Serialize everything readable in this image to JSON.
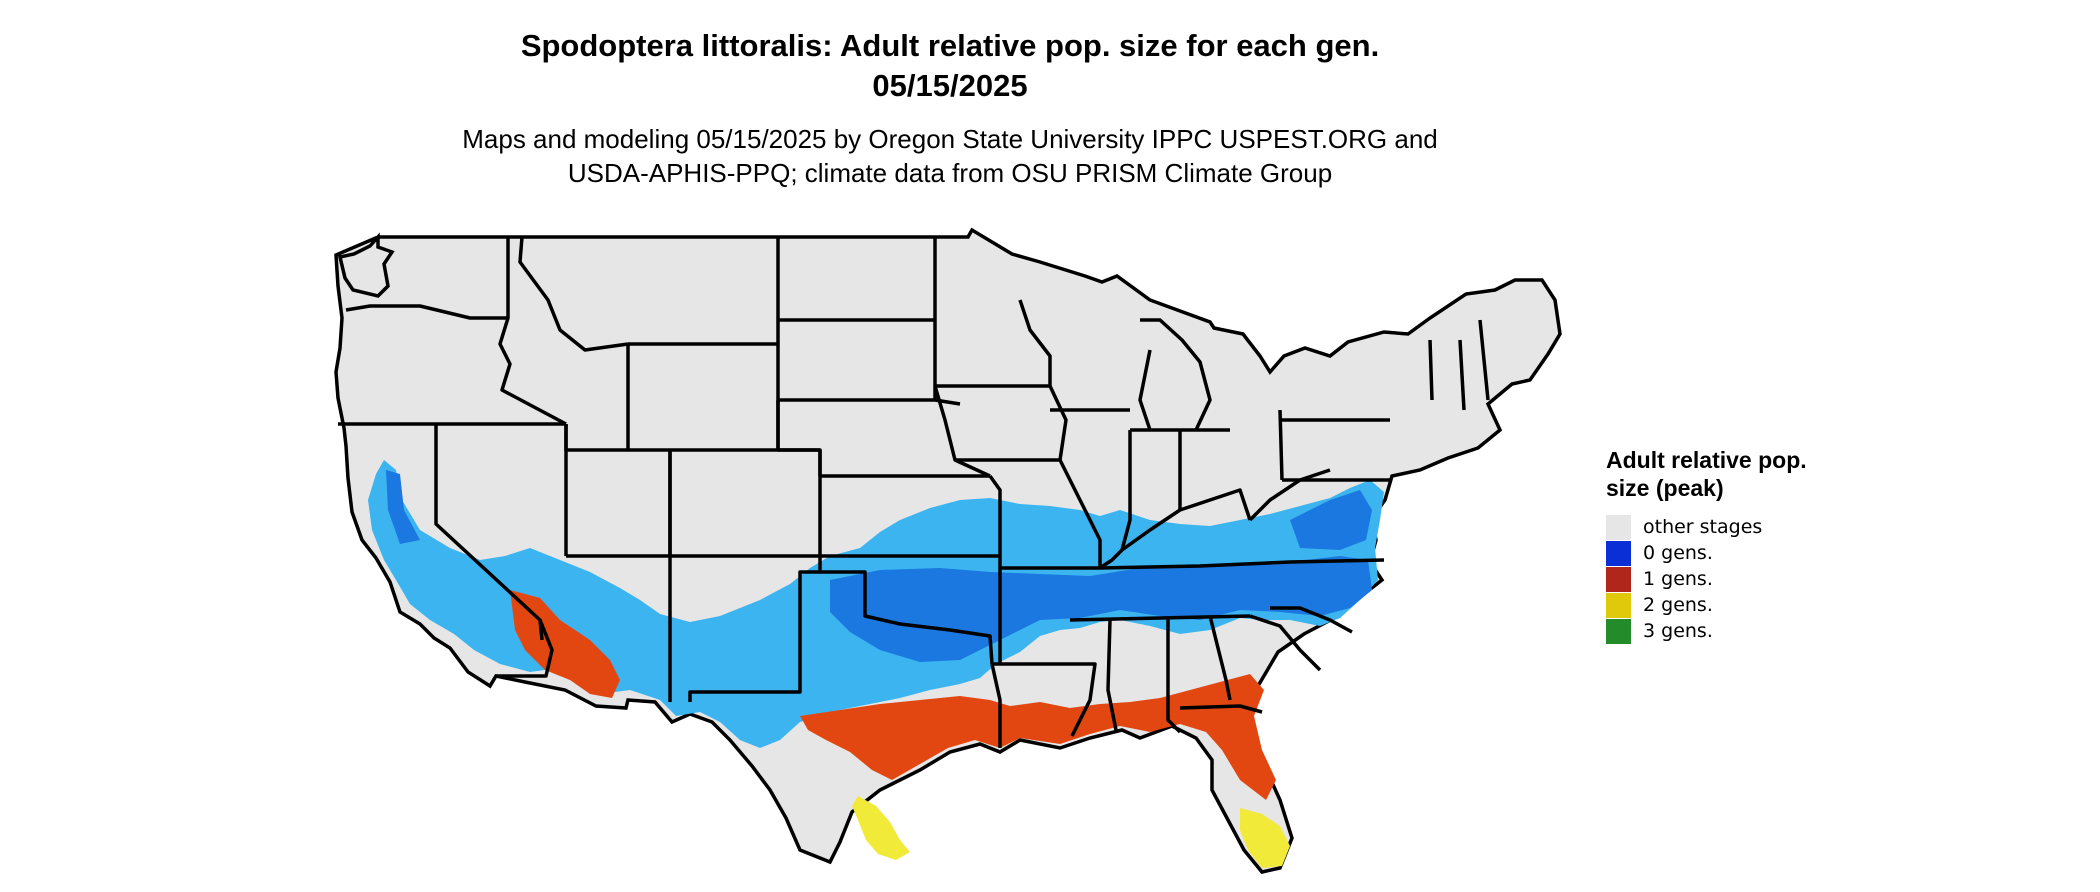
{
  "title": {
    "line1": "Spodoptera littoralis: Adult relative pop. size for each gen.",
    "line2": "05/15/2025"
  },
  "subtitle": {
    "line1": "Maps and modeling 05/15/2025 by Oregon State University IPPC USPEST.ORG and",
    "line2": "USDA-APHIS-PPQ; climate data from OSU PRISM Climate Group"
  },
  "legend": {
    "title": "Adult relative pop. size (peak)",
    "items": [
      {
        "label": "other stages",
        "color": "#e6e6e6"
      },
      {
        "label": "0 gens.",
        "color": "#0b2fd6"
      },
      {
        "label": "1 gens.",
        "color": "#b0261a"
      },
      {
        "label": "2 gens.",
        "color": "#e0c80a"
      },
      {
        "label": "3 gens.",
        "color": "#238b2a"
      }
    ]
  },
  "map": {
    "land_color": "#e6e6e6",
    "border_color": "#000000",
    "zone_colors": {
      "gen0_light": "#3cb4f0",
      "gen0_dark": "#1a78e0",
      "gen1": "#e24712",
      "gen2": "#f2ea38"
    }
  }
}
